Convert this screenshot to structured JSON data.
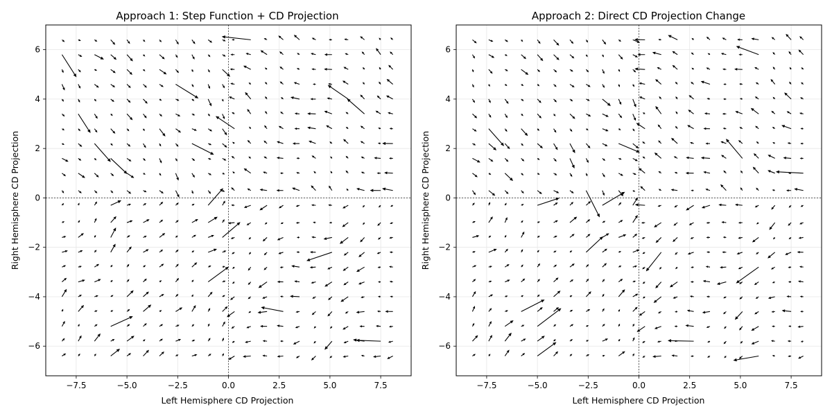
{
  "chart_data": [
    {
      "type": "quiver",
      "title": "Approach 1: Step Function + CD Projection",
      "xlabel": "Left Hemisphere CD Projection",
      "ylabel": "Right Hemisphere CD Projection",
      "xlim": [
        -9.0,
        9.0
      ],
      "ylim": [
        -7.2,
        7.0
      ],
      "xticks": [
        -7.5,
        -5.0,
        -2.5,
        0.0,
        2.5,
        5.0,
        7.5
      ],
      "xtick_labels": [
        "−7.5",
        "−5.0",
        "−2.5",
        "0.0",
        "2.5",
        "5.0",
        "7.5"
      ],
      "yticks": [
        -6,
        -4,
        -2,
        0,
        2,
        4,
        6
      ],
      "ytick_labels": [
        "−6",
        "−4",
        "−2",
        "0",
        "2",
        "4",
        "6"
      ],
      "grid": true,
      "reference_lines": {
        "x": 0,
        "y": 0,
        "style": "dashed"
      },
      "grid_x": [
        -8.2,
        -7.4,
        -6.6,
        -5.8,
        -5.0,
        -4.2,
        -3.4,
        -2.6,
        -1.8,
        -1.0,
        -0.3,
        0.3,
        1.1,
        1.9,
        2.7,
        3.5,
        4.3,
        5.1,
        5.9,
        6.7,
        7.5,
        8.1
      ],
      "grid_y": [
        -6.4,
        -5.8,
        -5.2,
        -4.6,
        -4.0,
        -3.4,
        -2.8,
        -2.2,
        -1.6,
        -1.0,
        -0.3,
        0.3,
        1.0,
        1.6,
        2.2,
        2.8,
        3.4,
        4.0,
        4.6,
        5.2,
        5.8,
        6.4
      ],
      "field_seed": 7
    },
    {
      "type": "quiver",
      "title": "Approach 2: Direct CD Projection Change",
      "xlabel": "Left Hemisphere CD Projection",
      "ylabel": "Right Hemisphere CD Projection",
      "xlim": [
        -9.0,
        9.0
      ],
      "ylim": [
        -7.2,
        7.0
      ],
      "xticks": [
        -7.5,
        -5.0,
        -2.5,
        0.0,
        2.5,
        5.0,
        7.5
      ],
      "xtick_labels": [
        "−7.5",
        "−5.0",
        "−2.5",
        "0.0",
        "2.5",
        "5.0",
        "7.5"
      ],
      "yticks": [
        -6,
        -4,
        -2,
        0,
        2,
        4,
        6
      ],
      "ytick_labels": [
        "−6",
        "−4",
        "−2",
        "0",
        "2",
        "4",
        "6"
      ],
      "grid": true,
      "reference_lines": {
        "x": 0,
        "y": 0,
        "style": "dashed"
      },
      "grid_x": [
        -8.2,
        -7.4,
        -6.6,
        -5.8,
        -5.0,
        -4.2,
        -3.4,
        -2.6,
        -1.8,
        -1.0,
        -0.3,
        0.3,
        1.1,
        1.9,
        2.7,
        3.5,
        4.3,
        5.1,
        5.9,
        6.7,
        7.5,
        8.1
      ],
      "grid_y": [
        -6.4,
        -5.8,
        -5.2,
        -4.6,
        -4.0,
        -3.4,
        -2.8,
        -2.2,
        -1.6,
        -1.0,
        -0.3,
        0.3,
        1.0,
        1.6,
        2.2,
        2.8,
        3.4,
        4.0,
        4.6,
        5.2,
        5.8,
        6.4
      ],
      "field_seed": 13
    }
  ]
}
